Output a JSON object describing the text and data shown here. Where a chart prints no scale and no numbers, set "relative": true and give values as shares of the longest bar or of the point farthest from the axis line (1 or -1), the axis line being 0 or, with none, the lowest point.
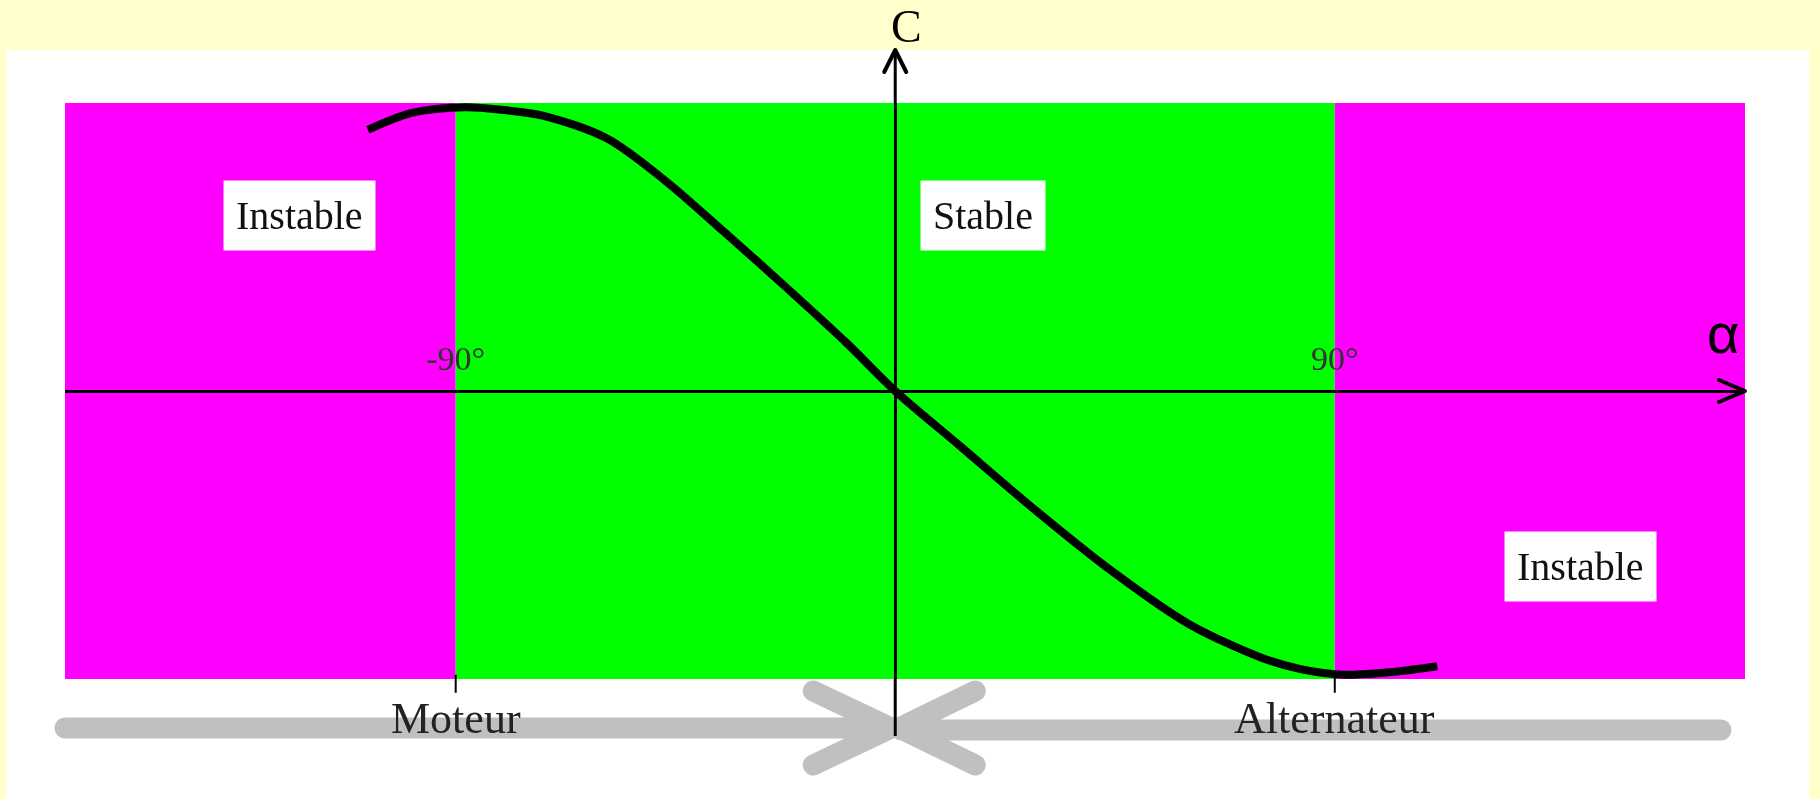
{
  "chart_data": {
    "type": "line",
    "xlabel": "α",
    "ylabel": "C",
    "relative": true,
    "color": "#000000",
    "x": [
      -108,
      -99,
      -88,
      -80,
      -72,
      -59,
      -47,
      -35,
      -22,
      -10,
      0,
      13,
      28,
      44,
      60,
      75,
      83,
      92,
      102,
      111
    ],
    "values": [
      0.92,
      0.98,
      1.0,
      0.99,
      0.97,
      0.89,
      0.74,
      0.56,
      0.36,
      0.17,
      0,
      -0.19,
      -0.41,
      -0.63,
      -0.82,
      -0.94,
      -0.98,
      -1.0,
      -0.99,
      -0.97
    ],
    "xlim": [
      -170,
      174
    ],
    "xticks": [
      {
        "value": -90,
        "label": "-90°"
      },
      {
        "value": 90,
        "label": "90°"
      }
    ],
    "tick_labels": "x",
    "bands": [
      {
        "axis": "x",
        "from": -170,
        "to": -90,
        "label": "Instable",
        "color": "#ff00ff"
      },
      {
        "axis": "x",
        "from": -90,
        "to": 90,
        "label": "Stable",
        "color": "#00ff00"
      },
      {
        "axis": "x",
        "from": 90,
        "to": 174,
        "label": "Instable",
        "color": "#ff00ff"
      }
    ],
    "annotations": [
      {
        "text": "Moteur",
        "x": -90,
        "y": -1
      },
      {
        "text": "Alternateur",
        "x": 90,
        "y": -1
      }
    ]
  }
}
